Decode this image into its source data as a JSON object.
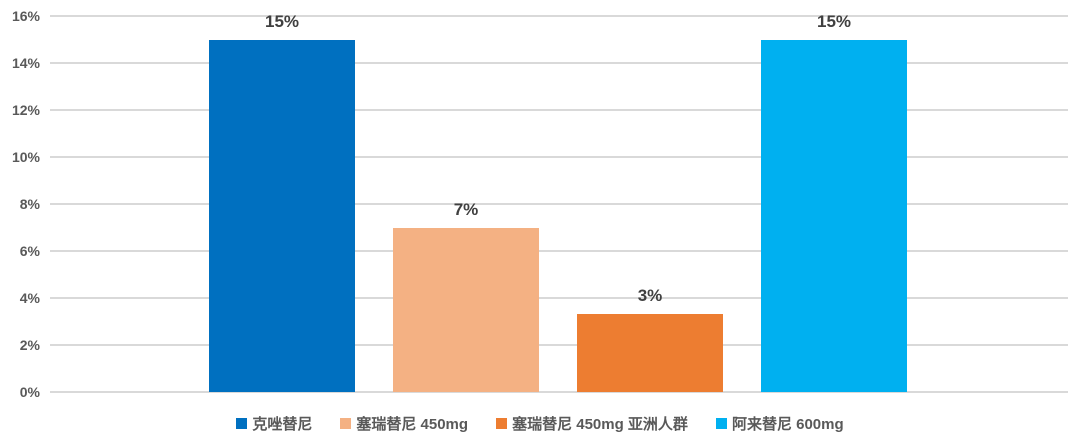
{
  "chart_data": {
    "type": "bar",
    "categories": [
      "克唑替尼",
      "塞瑞替尼 450mg",
      "塞瑞替尼 450mg 亚洲人群",
      "阿来替尼 600mg"
    ],
    "values": [
      15,
      7,
      3.3,
      15
    ],
    "data_labels": [
      "15%",
      "7%",
      "3%",
      "15%"
    ],
    "bar_colors": [
      "#0070C0",
      "#F4B183",
      "#ED7D31",
      "#00B0F0"
    ],
    "title": "",
    "xlabel": "",
    "ylabel": "",
    "ylim": [
      0,
      16
    ],
    "y_tick_step": 2,
    "y_tick_labels": [
      "0%",
      "2%",
      "4%",
      "6%",
      "8%",
      "10%",
      "12%",
      "14%",
      "16%"
    ],
    "grid": true,
    "legend_position": "bottom",
    "legend": [
      {
        "label": "克唑替尼",
        "color": "#0070C0"
      },
      {
        "label": "塞瑞替尼 450mg",
        "color": "#F4B183"
      },
      {
        "label": "塞瑞替尼 450mg 亚洲人群",
        "color": "#ED7D31"
      },
      {
        "label": "阿来替尼 600mg",
        "color": "#00B0F0"
      }
    ]
  },
  "colors": {
    "background": "#FFFFFF",
    "gridline": "#D9D9D9",
    "axis_tick_text": "#595959",
    "data_label_text": "#404040",
    "legend_text": "#595959"
  }
}
